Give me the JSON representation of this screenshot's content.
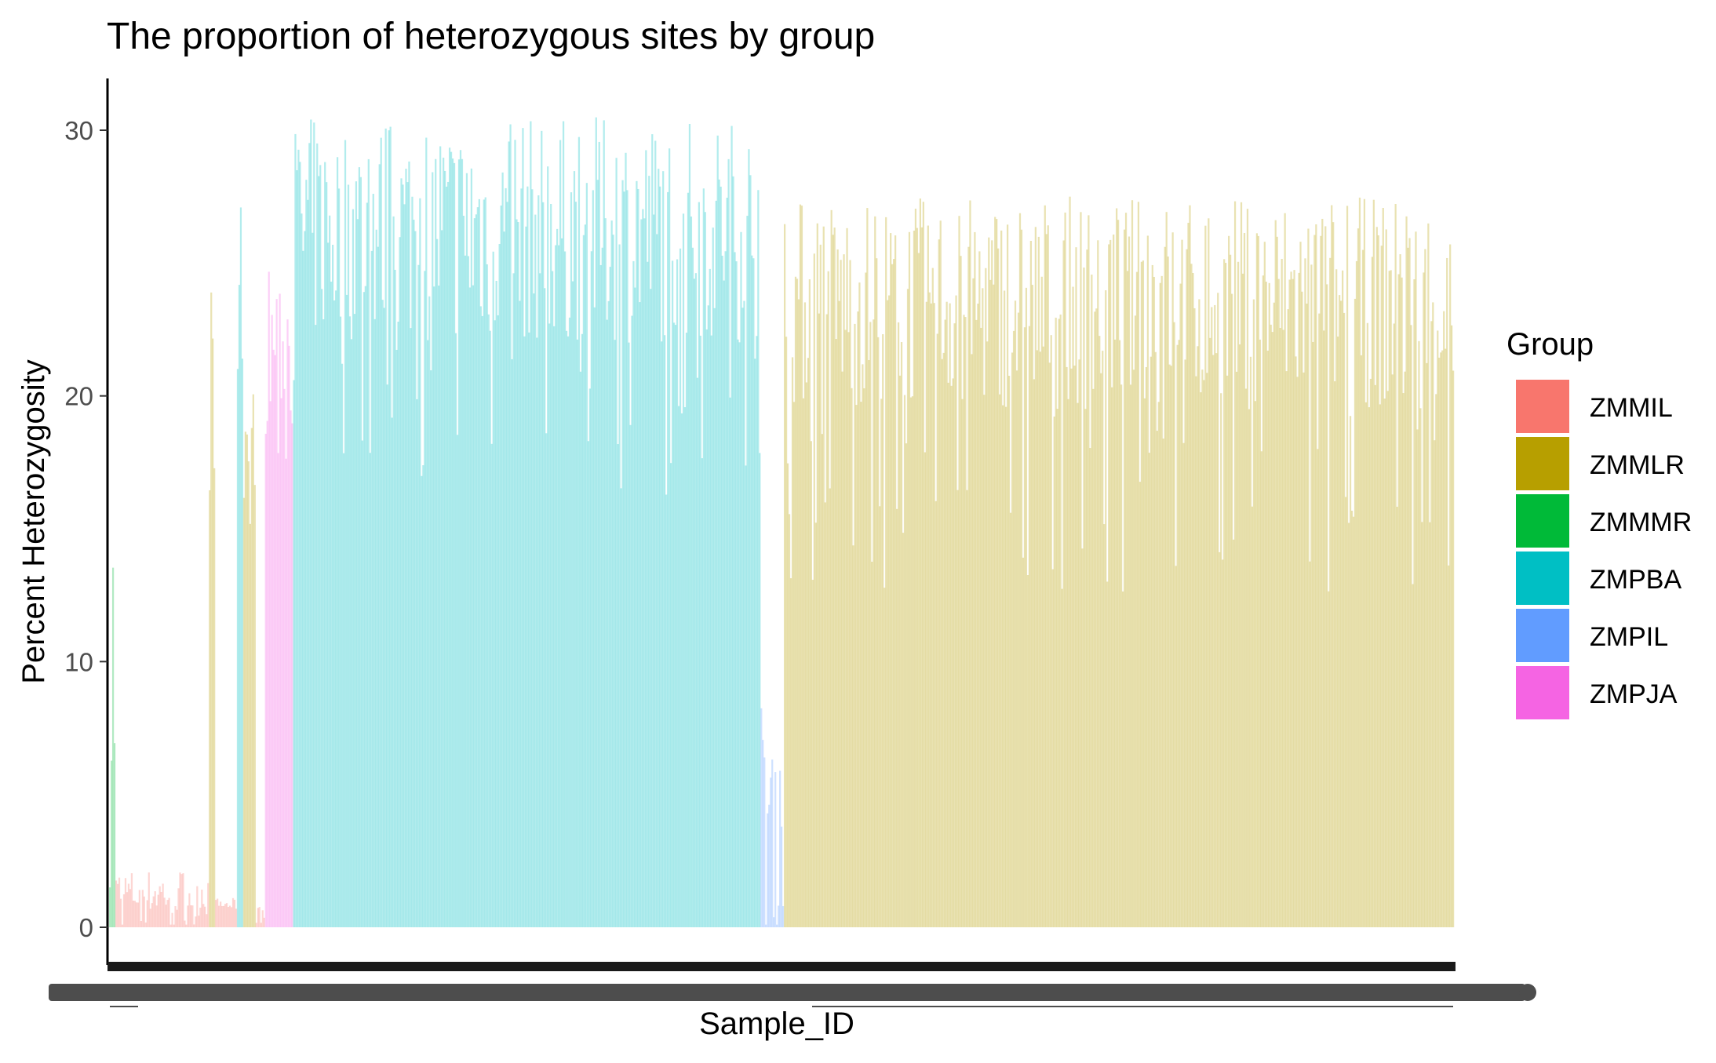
{
  "chart_data": {
    "type": "bar",
    "title": "The proportion of heterozygous sites by group",
    "xlabel": "Sample_ID",
    "ylabel": "Percent Heterozygosity",
    "ylim": [
      -1.5,
      32
    ],
    "y_ticks": [
      "0",
      "10",
      "20",
      "30"
    ],
    "y_tick_values": [
      0,
      10,
      20,
      30
    ],
    "legend": {
      "title": "Group",
      "placement": "right",
      "entries": [
        "ZMMIL",
        "ZMMLR",
        "ZMMMR",
        "ZMPBA",
        "ZMPIL",
        "ZMPJA"
      ]
    },
    "group_colors": {
      "ZMMIL": "#F8766D",
      "ZMMLR": "#B79F00",
      "ZMMMR": "#00BA38",
      "ZMPBA": "#00BFC4",
      "ZMPIL": "#619CFF",
      "ZMPJA": "#F564E3"
    },
    "bar_opacity": 0.3,
    "grid": false,
    "x_tick_labels_legible": false,
    "segments": [
      {
        "group": "ZMMMR",
        "n": 4,
        "base": 1.5,
        "peak": 18.0,
        "noise": 8.0
      },
      {
        "group": "ZMMIL",
        "n": 60,
        "base": 0.4,
        "peak": 2.2,
        "noise": 0.6
      },
      {
        "group": "ZMMLR",
        "n": 4,
        "base": 17.0,
        "peak": 24.5,
        "noise": 5.0
      },
      {
        "group": "ZMMIL",
        "n": 14,
        "base": 0.6,
        "peak": 1.1,
        "noise": 0.4
      },
      {
        "group": "ZMPBA",
        "n": 4,
        "base": 20.0,
        "peak": 27.5,
        "noise": 6.0
      },
      {
        "group": "ZMMLR",
        "n": 8,
        "base": 15.0,
        "peak": 22.0,
        "noise": 5.0
      },
      {
        "group": "ZMMIL",
        "n": 6,
        "base": 0.4,
        "peak": 0.8,
        "noise": 0.3
      },
      {
        "group": "ZMPJA",
        "n": 18,
        "base": 19.0,
        "peak": 25.0,
        "noise": 5.0
      },
      {
        "group": "ZMPBA",
        "n": 300,
        "base": 22.0,
        "peak": 30.5,
        "noise": 6.0
      },
      {
        "group": "ZMPIL",
        "n": 15,
        "base": 0.5,
        "peak": 8.5,
        "noise": 3.0
      },
      {
        "group": "ZMMLR",
        "n": 430,
        "base": 19.5,
        "peak": 27.5,
        "noise": 7.0
      }
    ]
  }
}
